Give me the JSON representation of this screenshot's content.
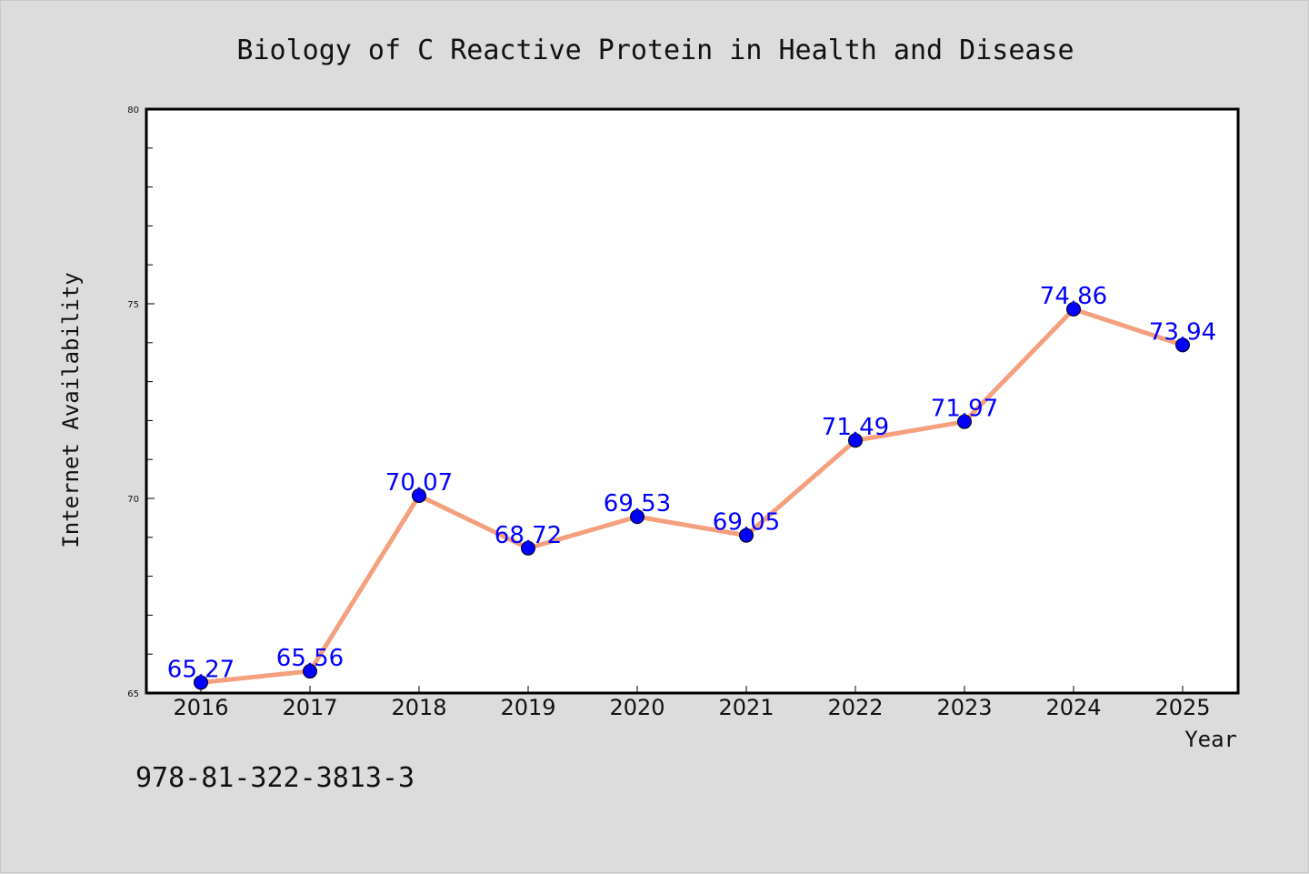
{
  "chart_data": {
    "type": "line",
    "title": "Biology of C Reactive Protein in Health and Disease",
    "xlabel": "Year",
    "ylabel": "Internet Availability",
    "categories": [
      "2016",
      "2017",
      "2018",
      "2019",
      "2020",
      "2021",
      "2022",
      "2023",
      "2024",
      "2025"
    ],
    "series": [
      {
        "values": [
          65.27,
          65.56,
          70.07,
          68.72,
          69.53,
          69.05,
          71.49,
          71.97,
          74.86,
          73.94
        ],
        "line_color": "#f4a07e",
        "marker_color": "#0000ff"
      }
    ],
    "data_labels": [
      "65.27",
      "65.56",
      "70.07",
      "68.72",
      "69.53",
      "69.05",
      "71.49",
      "71.97",
      "74.86",
      "73.94"
    ],
    "ylim": [
      65,
      80
    ],
    "y_ticks": [
      "65",
      "70",
      "75",
      "80"
    ],
    "grid": false,
    "data_label_color": "#0000ff"
  },
  "footer": {
    "isbn": "978-81-322-3813-3"
  }
}
